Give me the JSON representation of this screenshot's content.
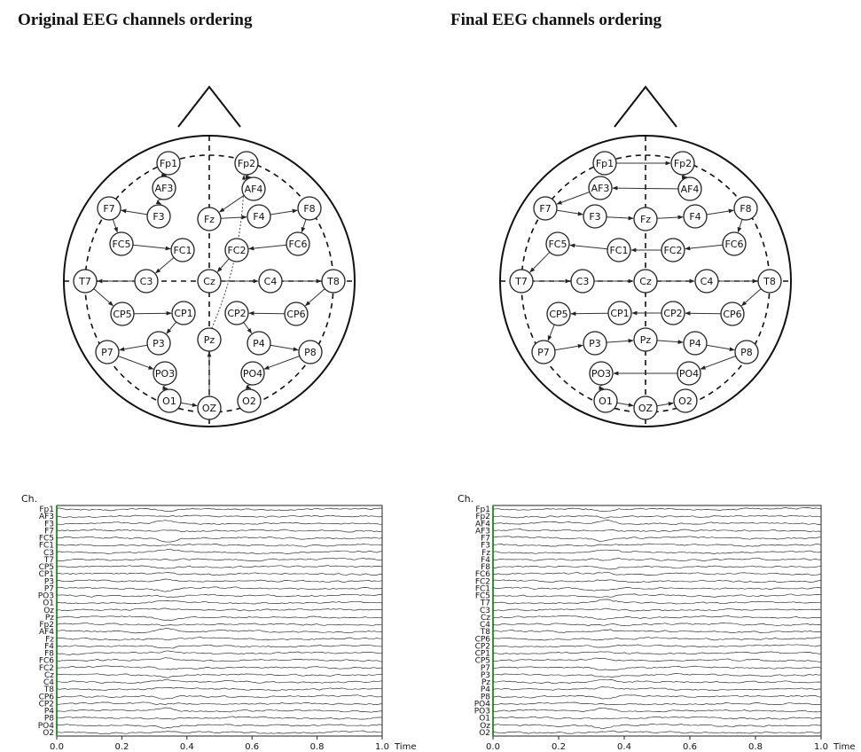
{
  "titles": {
    "left": "Original EEG channels ordering",
    "right": "Final EEG channels ordering"
  },
  "electrodes": [
    "Fp1",
    "Fp2",
    "AF3",
    "AF4",
    "F7",
    "F3",
    "Fz",
    "F4",
    "F8",
    "FC5",
    "FC1",
    "FC2",
    "FC6",
    "T7",
    "C3",
    "Cz",
    "C4",
    "T8",
    "CP5",
    "CP1",
    "CP2",
    "CP6",
    "P7",
    "P3",
    "Pz",
    "P4",
    "P8",
    "PO3",
    "PO4",
    "O1",
    "OZ",
    "O2"
  ],
  "orderings": {
    "original": [
      "Fp1",
      "AF3",
      "F3",
      "F7",
      "FC5",
      "FC1",
      "C3",
      "T7",
      "CP5",
      "CP1",
      "P3",
      "P7",
      "PO3",
      "O1",
      "OZ",
      "Pz",
      "Fp2",
      "AF4",
      "Fz",
      "F4",
      "F8",
      "FC6",
      "FC2",
      "Cz",
      "C4",
      "T8",
      "CP6",
      "CP2",
      "P4",
      "P8",
      "PO4",
      "O2"
    ],
    "final": [
      "Fp1",
      "Fp2",
      "AF4",
      "AF3",
      "F7",
      "F3",
      "Fz",
      "F4",
      "F8",
      "FC6",
      "FC2",
      "FC1",
      "FC5",
      "T7",
      "C3",
      "Cz",
      "C4",
      "T8",
      "CP6",
      "CP2",
      "CP1",
      "CP5",
      "P7",
      "P3",
      "Pz",
      "P4",
      "P8",
      "PO4",
      "PO3",
      "O1",
      "OZ",
      "O2"
    ]
  },
  "chart_data": [
    {
      "type": "line",
      "ylabel": "Ch.",
      "xlabel": "Time",
      "xlim": [
        0.0,
        1.0
      ],
      "xticks": [
        "0.0",
        "0.2",
        "0.4",
        "0.6",
        "0.8",
        "1.0"
      ],
      "channels": [
        "Fp1",
        "AF3",
        "F3",
        "F7",
        "FC5",
        "FC1",
        "C3",
        "T7",
        "CP5",
        "CP1",
        "P3",
        "P7",
        "PO3",
        "O1",
        "Oz",
        "Pz",
        "Fp2",
        "AF4",
        "Fz",
        "F4",
        "F8",
        "FC6",
        "FC2",
        "Cz",
        "C4",
        "T8",
        "CP6",
        "CP2",
        "P4",
        "P8",
        "PO4",
        "O2"
      ]
    },
    {
      "type": "line",
      "ylabel": "Ch.",
      "xlabel": "Time",
      "xlim": [
        0.0,
        1.0
      ],
      "xticks": [
        "0.0",
        "0.2",
        "0.4",
        "0.6",
        "0.8",
        "1.0"
      ],
      "channels": [
        "Fp1",
        "Fp2",
        "AF4",
        "AF3",
        "F7",
        "F3",
        "Fz",
        "F4",
        "F8",
        "FC6",
        "FC2",
        "FC1",
        "FC5",
        "T7",
        "C3",
        "Cz",
        "C4",
        "T8",
        "CP6",
        "CP2",
        "CP1",
        "CP5",
        "P7",
        "P3",
        "Pz",
        "P4",
        "P8",
        "PO4",
        "PO3",
        "O1",
        "Oz",
        "O2"
      ]
    }
  ]
}
